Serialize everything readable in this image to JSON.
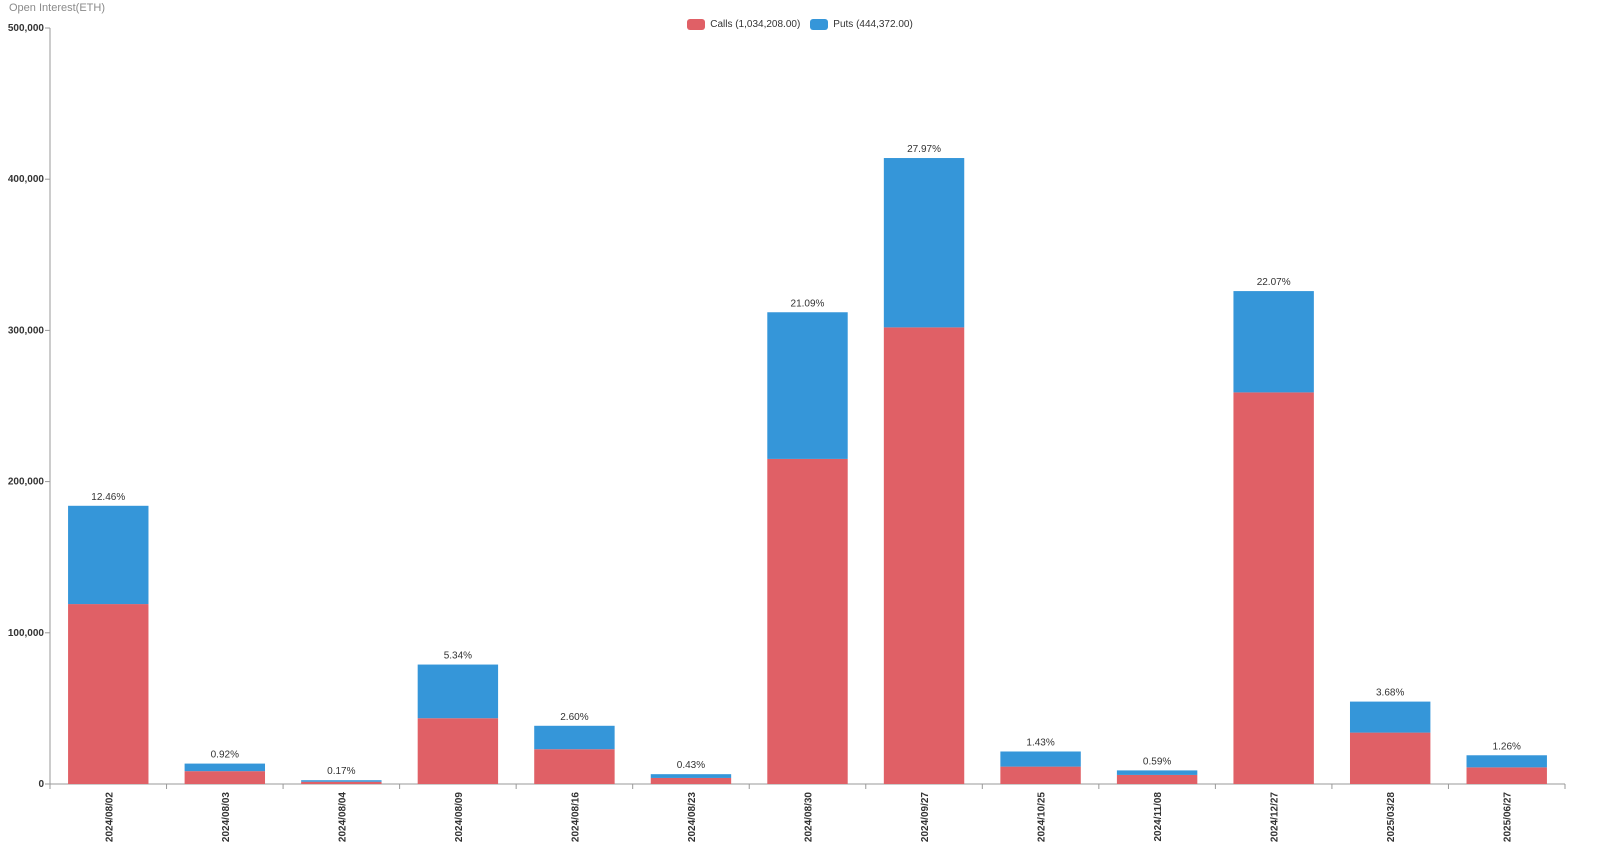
{
  "axis_title": "Open Interest(ETH)",
  "legend": {
    "calls_label": "Calls (1,034,208.00)",
    "puts_label": "Puts (444,372.00)"
  },
  "colors": {
    "calls": "#e06066",
    "puts": "#3596d9",
    "axis": "#999999",
    "text": "#333333"
  },
  "chart_data": {
    "type": "bar",
    "stacked": true,
    "categories": [
      "2024/08/02",
      "2024/08/03",
      "2024/08/04",
      "2024/08/09",
      "2024/08/16",
      "2024/08/23",
      "2024/08/30",
      "2024/09/27",
      "2024/10/25",
      "2024/11/08",
      "2024/12/27",
      "2025/03/28",
      "2025/06/27"
    ],
    "series": [
      {
        "name": "Calls",
        "values": [
          119000,
          8500,
          1500,
          43500,
          23000,
          4000,
          215000,
          302000,
          11500,
          6000,
          259000,
          34000,
          11000
        ]
      },
      {
        "name": "Puts",
        "values": [
          65000,
          5000,
          1000,
          35500,
          15500,
          2500,
          97000,
          112000,
          10000,
          3000,
          67000,
          20500,
          8000
        ]
      }
    ],
    "data_labels": [
      "12.46%",
      "0.92%",
      "0.17%",
      "5.34%",
      "2.60%",
      "0.43%",
      "21.09%",
      "27.97%",
      "1.43%",
      "0.59%",
      "22.07%",
      "3.68%",
      "1.26%"
    ],
    "y_ticks": [
      "0",
      "100,000",
      "200,000",
      "300,000",
      "400,000",
      "500,000"
    ],
    "ylim": [
      0,
      500000
    ],
    "ylabel": "Open Interest(ETH)",
    "legend_position": "top-center",
    "grid": false
  }
}
